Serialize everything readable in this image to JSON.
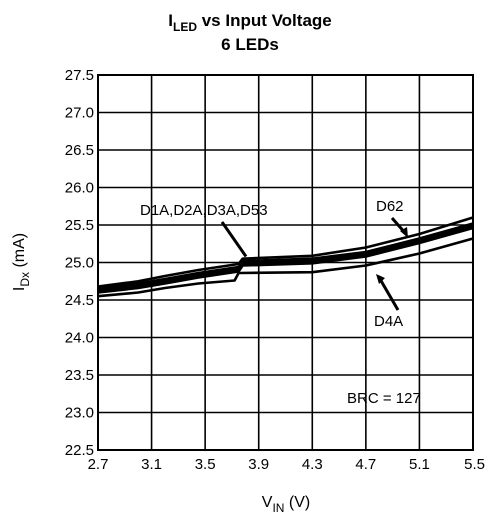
{
  "chart_data": {
    "type": "line",
    "title": {
      "line1_main": "I",
      "line1_sub": "LED",
      "line1_rest": " vs Input Voltage",
      "line2": "6 LEDs"
    },
    "xlabel": {
      "main": "V",
      "sub": "IN",
      "unit": " (V)"
    },
    "ylabel": {
      "main": "I",
      "sub": "Dx",
      "unit": " (mA)"
    },
    "xlim": [
      2.7,
      5.5
    ],
    "ylim": [
      22.5,
      27.5
    ],
    "x_ticks": [
      "2.7",
      "3.1",
      "3.5",
      "3.9",
      "4.3",
      "4.7",
      "5.1",
      "5.5"
    ],
    "y_ticks": [
      "27.5",
      "27.0",
      "26.5",
      "26.0",
      "25.5",
      "25.0",
      "24.5",
      "24.0",
      "23.5",
      "23.0",
      "22.5"
    ],
    "grid": true,
    "series": [
      {
        "name": "D1A",
        "x": [
          2.7,
          3.0,
          3.2,
          3.45,
          3.75,
          3.78,
          4.3,
          4.7,
          5.1,
          5.5
        ],
        "values": [
          24.64,
          24.7,
          24.76,
          24.84,
          24.92,
          25.0,
          25.03,
          25.12,
          25.3,
          25.5
        ]
      },
      {
        "name": "D2A",
        "x": [
          2.7,
          3.0,
          3.2,
          3.45,
          3.75,
          3.78,
          4.3,
          4.7,
          5.1,
          5.5
        ],
        "values": [
          24.66,
          24.72,
          24.78,
          24.86,
          24.94,
          25.02,
          25.05,
          25.14,
          25.32,
          25.52
        ]
      },
      {
        "name": "D3A",
        "x": [
          2.7,
          3.0,
          3.2,
          3.45,
          3.75,
          3.78,
          4.3,
          4.7,
          5.1,
          5.5
        ],
        "values": [
          24.62,
          24.68,
          24.74,
          24.82,
          24.9,
          24.98,
          25.01,
          25.1,
          25.28,
          25.48
        ]
      },
      {
        "name": "D53",
        "x": [
          2.7,
          3.0,
          3.2,
          3.45,
          3.75,
          3.78,
          4.3,
          4.7,
          5.1,
          5.5
        ],
        "values": [
          24.6,
          24.66,
          24.72,
          24.8,
          24.88,
          24.96,
          24.99,
          25.08,
          25.26,
          25.46
        ]
      },
      {
        "name": "D62",
        "x": [
          2.7,
          3.0,
          3.2,
          3.45,
          3.75,
          3.78,
          4.3,
          4.7,
          5.1,
          5.5
        ],
        "values": [
          24.68,
          24.75,
          24.82,
          24.9,
          24.98,
          25.05,
          25.09,
          25.2,
          25.38,
          25.6
        ]
      },
      {
        "name": "D4A",
        "x": [
          2.7,
          3.0,
          3.2,
          3.45,
          3.72,
          3.75,
          4.3,
          4.7,
          5.1,
          5.5
        ],
        "values": [
          24.55,
          24.6,
          24.66,
          24.72,
          24.76,
          24.86,
          24.87,
          24.96,
          25.12,
          25.32
        ]
      }
    ],
    "annotations": [
      {
        "text": "D1A,D2A,D3A,D53",
        "target_x": 3.82,
        "target_y": 25.0
      },
      {
        "text": "D62",
        "target_x": 5.0,
        "target_y": 25.3
      },
      {
        "text": "D4A",
        "target_x": 4.7,
        "target_y": 24.9
      },
      {
        "text": "BRC = 127"
      }
    ]
  }
}
